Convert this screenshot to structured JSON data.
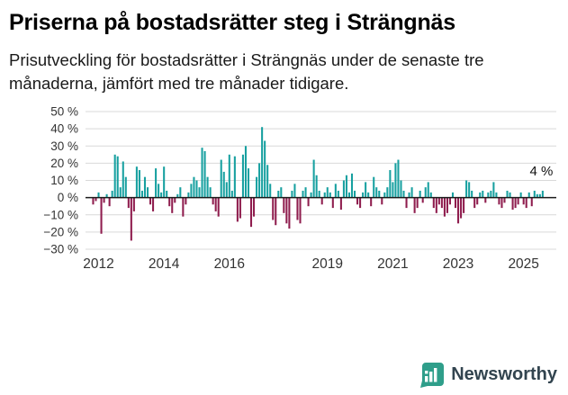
{
  "title": "Priserna på bostadsrätter steg i Strängnäs",
  "subtitle": "Prisutveckling för bostadsrätter i Strängnäs under de senaste tre månaderna, jämfört med tre månader tidigare.",
  "footer": {
    "brand": "Newsworthy"
  },
  "colors": {
    "positive": "#17a0a0",
    "negative": "#8f1d4e",
    "grid": "#d9d9d9",
    "zero_line": "#1a1a1a",
    "axis_text": "#333333",
    "annotation_text": "#111111",
    "brand_teal": "#2f9e8a",
    "brand_text": "#32444f"
  },
  "chart_data": {
    "type": "bar",
    "title": "Priserna på bostadsrätter steg i Strängnäs",
    "xlabel": "",
    "ylabel": "%",
    "ylim": [
      -30,
      50
    ],
    "grid": true,
    "legend": "none",
    "yticks": [
      {
        "label": "50 %",
        "value": 50
      },
      {
        "label": "40 %",
        "value": 40
      },
      {
        "label": "30 %",
        "value": 30
      },
      {
        "label": "20 %",
        "value": 20
      },
      {
        "label": "10 %",
        "value": 10
      },
      {
        "label": "0 %",
        "value": 0
      },
      {
        "label": "−10 %",
        "value": -10
      },
      {
        "label": "−20 %",
        "value": -20
      },
      {
        "label": "−30 %",
        "value": -30
      }
    ],
    "xticks": [
      {
        "label": "2012",
        "x": 2012
      },
      {
        "label": "2014",
        "x": 2014
      },
      {
        "label": "2016",
        "x": 2016
      },
      {
        "label": "2019",
        "x": 2019
      },
      {
        "label": "2021",
        "x": 2021
      },
      {
        "label": "2023",
        "x": 2023
      },
      {
        "label": "2025",
        "x": 2025
      }
    ],
    "x_range": [
      2011.6,
      2026.0
    ],
    "x_start": 2011.8333,
    "x_step": 0.0833333,
    "annotation": {
      "text": "4 %",
      "x": 2025.9,
      "y": 13
    },
    "values": [
      -4,
      -2,
      3,
      -21,
      -3,
      2,
      -5,
      4,
      25,
      24,
      6,
      21,
      12,
      -6,
      -25,
      -8,
      18,
      16,
      4,
      12,
      6,
      -4,
      -8,
      17,
      8,
      3,
      18,
      4,
      -5,
      -9,
      -3,
      2,
      6,
      -11,
      -4,
      3,
      8,
      12,
      10,
      6,
      29,
      27,
      12,
      6,
      -4,
      -8,
      -11,
      22,
      15,
      9,
      25,
      4,
      24,
      -14,
      -12,
      25,
      30,
      17,
      -17,
      -11,
      12,
      20,
      41,
      33,
      19,
      8,
      -13,
      -16,
      4,
      6,
      -9,
      -15,
      -18,
      4,
      8,
      -13,
      -15,
      4,
      6,
      -5,
      3,
      22,
      13,
      4,
      -4,
      3,
      6,
      3,
      -6,
      8,
      4,
      -7,
      10,
      13,
      3,
      14,
      4,
      -4,
      -6,
      3,
      9,
      3,
      -5,
      12,
      6,
      4,
      -4,
      3,
      6,
      16,
      9,
      20,
      22,
      10,
      4,
      -6,
      3,
      6,
      -9,
      -6,
      4,
      -3,
      6,
      9,
      3,
      -6,
      -9,
      -4,
      -6,
      -11,
      -9,
      -4,
      3,
      -6,
      -15,
      -12,
      -9,
      10,
      9,
      4,
      -6,
      -4,
      3,
      4,
      -3,
      3,
      4,
      9,
      3,
      -4,
      -6,
      -3,
      4,
      3,
      -7,
      -6,
      -4,
      3,
      -4,
      -6,
      3,
      -5,
      4,
      2,
      2,
      4
    ]
  }
}
